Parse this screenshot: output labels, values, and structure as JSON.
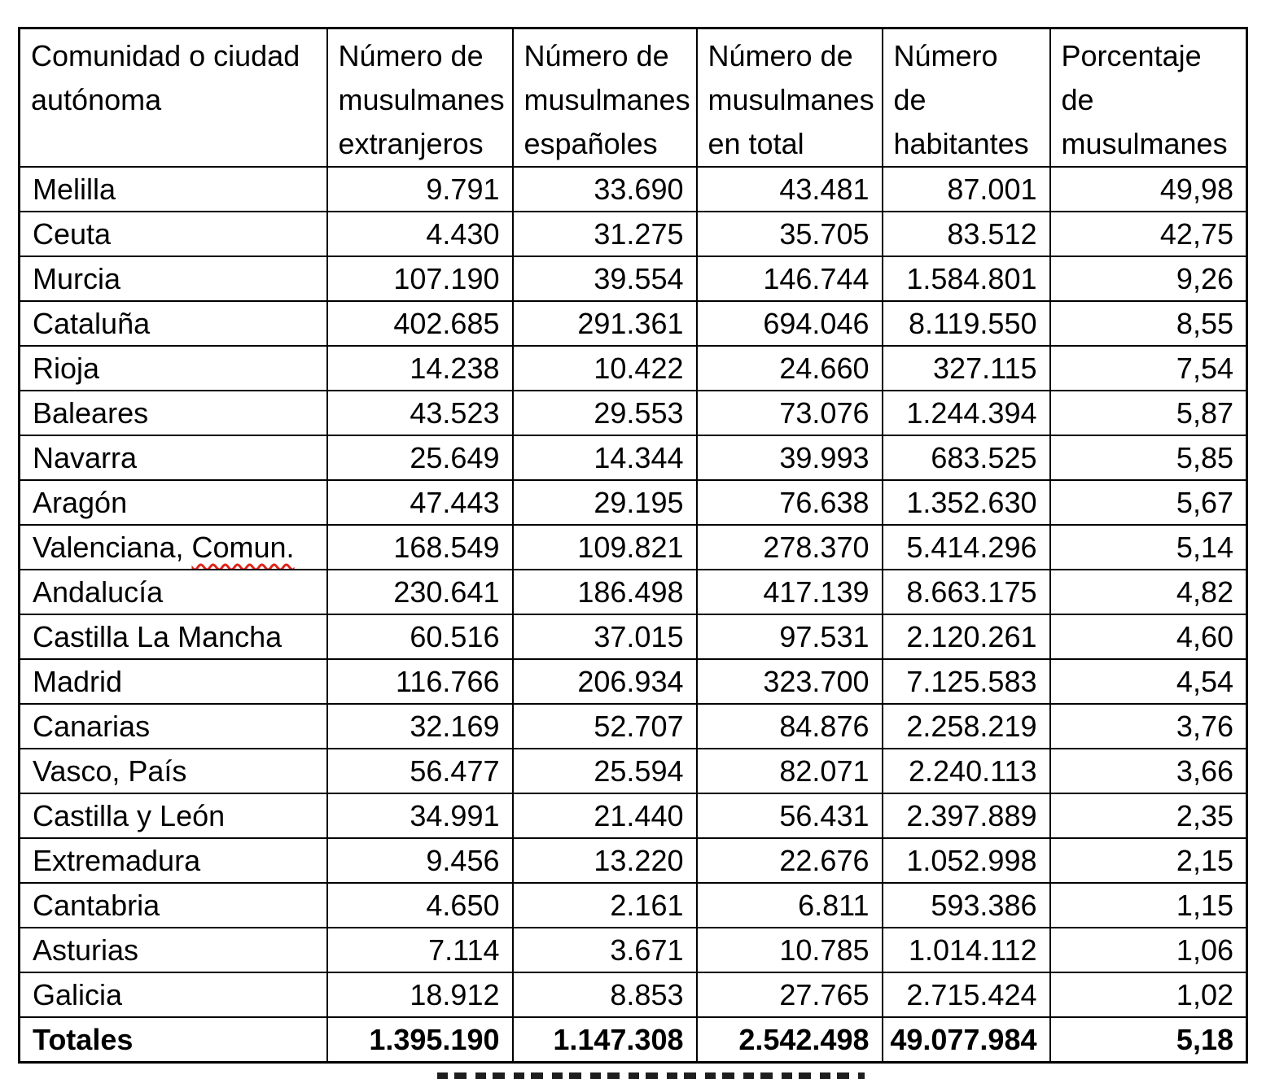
{
  "chart_data": {
    "type": "table",
    "title": "",
    "columns": [
      "Comunidad o ciudad\nautónoma",
      "Número de\nmusulmanes\nextranjeros",
      "Número de\nmusulmanes\nespañoles",
      "Número de\nmusulmanes\nen total",
      "Número\nde\nhabitantes",
      "Porcentaje\nde\nmusulmanes"
    ],
    "rows": [
      [
        "Melilla",
        "9.791",
        "33.690",
        "43.481",
        "87.001",
        "49,98"
      ],
      [
        "Ceuta",
        "4.430",
        "31.275",
        "35.705",
        "83.512",
        "42,75"
      ],
      [
        "Murcia",
        "107.190",
        "39.554",
        "146.744",
        "1.584.801",
        "9,26"
      ],
      [
        "Cataluña",
        "402.685",
        "291.361",
        "694.046",
        "8.119.550",
        "8,55"
      ],
      [
        "Rioja",
        "14.238",
        "10.422",
        "24.660",
        "327.115",
        "7,54"
      ],
      [
        "Baleares",
        "43.523",
        "29.553",
        "73.076",
        "1.244.394",
        "5,87"
      ],
      [
        "Navarra",
        "25.649",
        "14.344",
        "39.993",
        "683.525",
        "5,85"
      ],
      [
        "Aragón",
        "47.443",
        "29.195",
        "76.638",
        "1.352.630",
        "5,67"
      ],
      [
        "Valenciana, Comun.",
        "168.549",
        "109.821",
        "278.370",
        "5.414.296",
        "5,14"
      ],
      [
        "Andalucía",
        "230.641",
        "186.498",
        "417.139",
        "8.663.175",
        "4,82"
      ],
      [
        "Castilla La Mancha",
        "60.516",
        "37.015",
        "97.531",
        "2.120.261",
        "4,60"
      ],
      [
        "Madrid",
        "116.766",
        "206.934",
        "323.700",
        "7.125.583",
        "4,54"
      ],
      [
        "Canarias",
        "32.169",
        "52.707",
        "84.876",
        "2.258.219",
        "3,76"
      ],
      [
        "Vasco, País",
        "56.477",
        "25.594",
        "82.071",
        "2.240.113",
        "3,66"
      ],
      [
        "Castilla y León",
        "34.991",
        "21.440",
        "56.431",
        "2.397.889",
        "2,35"
      ],
      [
        "Extremadura",
        "9.456",
        "13.220",
        "22.676",
        "1.052.998",
        "2,15"
      ],
      [
        "Cantabria",
        "4.650",
        "2.161",
        "6.811",
        "593.386",
        "1,15"
      ],
      [
        "Asturias",
        "7.114",
        "3.671",
        "10.785",
        "1.014.112",
        "1,06"
      ],
      [
        "Galicia",
        "18.912",
        "8.853",
        "27.765",
        "2.715.424",
        "1,02"
      ]
    ],
    "totals_row": [
      "Totales",
      "1.395.190",
      "1.147.308",
      "2.542.498",
      "49.077.984",
      "5,18"
    ],
    "layout_hints": {
      "grid": "all-borders",
      "number_alignment": "right",
      "totals_bold": true
    }
  },
  "annotations": {
    "spellcheck": {
      "row_index": 8,
      "before": "Valenciana, ",
      "flagged": "Comun.",
      "underline_style": "wavy-red"
    }
  },
  "colors": {
    "text": "#000000",
    "border": "#000000",
    "background": "#ffffff",
    "spellcheck_underline": "#e0241a"
  }
}
